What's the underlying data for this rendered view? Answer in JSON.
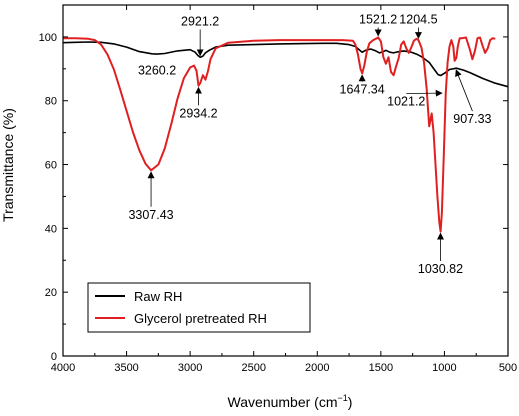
{
  "chart_data": {
    "type": "line",
    "xlabel_main": "Wavenumber (cm",
    "xlabel_sup": "−1",
    "xlabel_end": ")",
    "ylabel": "Transmittance (%)",
    "xlim": [
      4000,
      500
    ],
    "ylim": [
      0,
      110
    ],
    "x_ticks": [
      "4000",
      "3500",
      "3000",
      "2500",
      "2000",
      "1500",
      "1000",
      "500"
    ],
    "y_ticks": [
      "0",
      "20",
      "40",
      "60",
      "80",
      "100"
    ],
    "legend_position": "bottom-left",
    "series": [
      {
        "name": "Raw RH",
        "color": "#000000",
        "points": [
          [
            4000,
            98.2
          ],
          [
            3900,
            98.3
          ],
          [
            3800,
            98.4
          ],
          [
            3700,
            98.3
          ],
          [
            3600,
            97.8
          ],
          [
            3500,
            96.8
          ],
          [
            3400,
            95.4
          ],
          [
            3300,
            94.7
          ],
          [
            3260,
            94.6
          ],
          [
            3200,
            94.8
          ],
          [
            3100,
            95.6
          ],
          [
            3000,
            96.0
          ],
          [
            2960,
            95.2
          ],
          [
            2940,
            94.2
          ],
          [
            2921,
            93.6
          ],
          [
            2900,
            94.0
          ],
          [
            2880,
            95.0
          ],
          [
            2850,
            95.8
          ],
          [
            2800,
            96.8
          ],
          [
            2700,
            97.4
          ],
          [
            2500,
            97.6
          ],
          [
            2300,
            97.8
          ],
          [
            2100,
            97.9
          ],
          [
            1950,
            98.0
          ],
          [
            1850,
            98.0
          ],
          [
            1750,
            97.6
          ],
          [
            1700,
            97.0
          ],
          [
            1660,
            95.6
          ],
          [
            1647,
            95.2
          ],
          [
            1620,
            95.8
          ],
          [
            1580,
            96.2
          ],
          [
            1540,
            95.6
          ],
          [
            1510,
            95.0
          ],
          [
            1480,
            95.4
          ],
          [
            1460,
            95.8
          ],
          [
            1430,
            95.2
          ],
          [
            1400,
            95.0
          ],
          [
            1370,
            95.3
          ],
          [
            1320,
            95.6
          ],
          [
            1260,
            95.2
          ],
          [
            1220,
            94.6
          ],
          [
            1180,
            93.8
          ],
          [
            1120,
            92.0
          ],
          [
            1080,
            89.8
          ],
          [
            1050,
            88.2
          ],
          [
            1030,
            87.9
          ],
          [
            1000,
            88.6
          ],
          [
            960,
            89.8
          ],
          [
            907,
            90.2
          ],
          [
            850,
            89.6
          ],
          [
            800,
            88.8
          ],
          [
            700,
            87.0
          ],
          [
            600,
            85.5
          ],
          [
            500,
            84.4
          ]
        ]
      },
      {
        "name": "Glycerol pretreated RH",
        "color": "#e02020",
        "points": [
          [
            4000,
            99.6
          ],
          [
            3900,
            99.6
          ],
          [
            3800,
            99.4
          ],
          [
            3750,
            99.0
          ],
          [
            3700,
            97.6
          ],
          [
            3650,
            94.5
          ],
          [
            3600,
            89.8
          ],
          [
            3550,
            83.5
          ],
          [
            3500,
            76.8
          ],
          [
            3450,
            70.2
          ],
          [
            3400,
            64.5
          ],
          [
            3350,
            60.2
          ],
          [
            3307,
            58.2
          ],
          [
            3250,
            60.0
          ],
          [
            3200,
            65.0
          ],
          [
            3150,
            72.5
          ],
          [
            3100,
            80.5
          ],
          [
            3050,
            87.0
          ],
          [
            3000,
            90.4
          ],
          [
            2970,
            91.0
          ],
          [
            2950,
            89.4
          ],
          [
            2934,
            84.7
          ],
          [
            2920,
            85.6
          ],
          [
            2900,
            88.0
          ],
          [
            2880,
            86.6
          ],
          [
            2860,
            89.2
          ],
          [
            2840,
            93.0
          ],
          [
            2800,
            96.4
          ],
          [
            2700,
            98.2
          ],
          [
            2500,
            98.8
          ],
          [
            2300,
            99.0
          ],
          [
            2100,
            99.0
          ],
          [
            1950,
            99.0
          ],
          [
            1800,
            99.0
          ],
          [
            1720,
            98.8
          ],
          [
            1700,
            97.6
          ],
          [
            1680,
            94.4
          ],
          [
            1660,
            90.0
          ],
          [
            1647,
            88.6
          ],
          [
            1630,
            91.0
          ],
          [
            1610,
            95.5
          ],
          [
            1590,
            98.0
          ],
          [
            1560,
            99.0
          ],
          [
            1530,
            99.6
          ],
          [
            1521,
            99.8
          ],
          [
            1500,
            98.6
          ],
          [
            1480,
            93.6
          ],
          [
            1460,
            91.6
          ],
          [
            1440,
            93.6
          ],
          [
            1420,
            89.0
          ],
          [
            1400,
            88.0
          ],
          [
            1380,
            90.8
          ],
          [
            1360,
            93.4
          ],
          [
            1340,
            97.6
          ],
          [
            1320,
            98.6
          ],
          [
            1300,
            96.4
          ],
          [
            1280,
            95.0
          ],
          [
            1260,
            96.8
          ],
          [
            1240,
            98.8
          ],
          [
            1220,
            99.4
          ],
          [
            1204,
            99.0
          ],
          [
            1180,
            96.6
          ],
          [
            1160,
            91.8
          ],
          [
            1140,
            84.0
          ],
          [
            1120,
            72.0
          ],
          [
            1100,
            76.0
          ],
          [
            1085,
            70.0
          ],
          [
            1070,
            60.0
          ],
          [
            1055,
            50.0
          ],
          [
            1040,
            42.0
          ],
          [
            1030,
            39.0
          ],
          [
            1020,
            45.0
          ],
          [
            1005,
            63.0
          ],
          [
            990,
            82.0
          ],
          [
            975,
            92.0
          ],
          [
            960,
            97.0
          ],
          [
            945,
            99.0
          ],
          [
            930,
            97.0
          ],
          [
            920,
            92.5
          ],
          [
            907,
            93.4
          ],
          [
            895,
            97.0
          ],
          [
            880,
            99.6
          ],
          [
            860,
            99.6
          ],
          [
            830,
            99.8
          ],
          [
            800,
            96.0
          ],
          [
            780,
            93.0
          ],
          [
            760,
            95.6
          ],
          [
            740,
            99.6
          ],
          [
            720,
            99.8
          ],
          [
            700,
            97.2
          ],
          [
            680,
            95.0
          ],
          [
            660,
            96.4
          ],
          [
            640,
            99.0
          ],
          [
            620,
            99.6
          ],
          [
            600,
            99.4
          ]
        ]
      }
    ],
    "annotations": [
      {
        "label": "2921.2",
        "x": 2921.2,
        "y": 93.6,
        "tx": 2921.2,
        "ty": 103.6,
        "anchor": "middle",
        "arrow": true
      },
      {
        "label": "3260.2",
        "x": 3260.2,
        "y": 94.6,
        "tx": 3260.2,
        "ty": 88.2,
        "anchor": "middle",
        "arrow": false
      },
      {
        "label": "2934.2",
        "x": 2934.2,
        "y": 84.7,
        "tx": 2934.2,
        "ty": 74.8,
        "anchor": "middle",
        "arrow": true
      },
      {
        "label": "3307.43",
        "x": 3307.43,
        "y": 58.2,
        "tx": 3307.43,
        "ty": 43.0,
        "anchor": "middle",
        "arrow": true
      },
      {
        "label": "1521.2",
        "x": 1521.2,
        "y": 99.8,
        "tx": 1521.2,
        "ty": 104.2,
        "anchor": "middle",
        "arrow": true
      },
      {
        "label": "1204.5",
        "x": 1204.5,
        "y": 99.0,
        "tx": 1204.5,
        "ty": 104.2,
        "anchor": "middle",
        "arrow": true
      },
      {
        "label": "1647.34",
        "x": 1647.34,
        "y": 88.6,
        "tx": 1647.34,
        "ty": 82.2,
        "anchor": "middle",
        "arrow": true
      },
      {
        "label": "1021.2",
        "x": 1021.2,
        "y": 83.0,
        "tx": 1300.0,
        "ty": 78.5,
        "anchor": "middle",
        "arrow": true
      },
      {
        "label": "907.33",
        "x": 907.33,
        "y": 90.2,
        "tx": 780.0,
        "ty": 73.0,
        "anchor": "middle",
        "arrow": true
      },
      {
        "label": "1030.82",
        "x": 1030.82,
        "y": 39.0,
        "tx": 1030.82,
        "ty": 26.0,
        "anchor": "middle",
        "arrow": true
      }
    ]
  }
}
